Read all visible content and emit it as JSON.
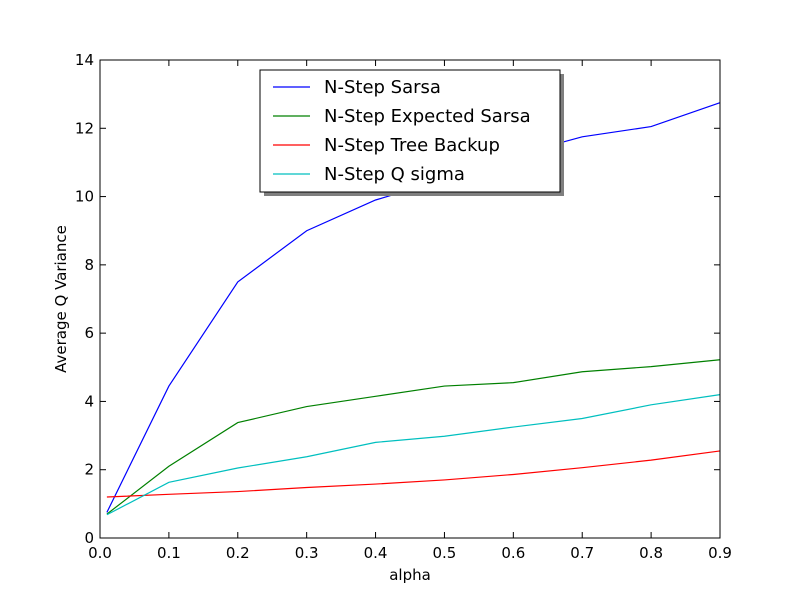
{
  "chart_data": {
    "type": "line",
    "title": "",
    "xlabel": "alpha",
    "ylabel": "Average Q Variance",
    "xlim": [
      0.0,
      0.9
    ],
    "ylim": [
      0,
      14
    ],
    "x_ticks": [
      "0.0",
      "0.1",
      "0.2",
      "0.3",
      "0.4",
      "0.5",
      "0.6",
      "0.7",
      "0.8",
      "0.9"
    ],
    "y_ticks": [
      "0",
      "2",
      "4",
      "6",
      "8",
      "10",
      "12",
      "14"
    ],
    "grid": false,
    "legend_position": "upper-center",
    "x": [
      0.01,
      0.1,
      0.2,
      0.3,
      0.4,
      0.5,
      0.6,
      0.7,
      0.8,
      0.9
    ],
    "series": [
      {
        "name": "N-Step Sarsa",
        "color": "#0000ff",
        "values": [
          0.75,
          4.45,
          7.5,
          9.0,
          9.9,
          10.5,
          11.2,
          11.75,
          12.05,
          12.75
        ]
      },
      {
        "name": "N-Step Expected Sarsa",
        "color": "#008000",
        "values": [
          0.7,
          2.1,
          3.38,
          3.85,
          4.15,
          4.45,
          4.55,
          4.87,
          5.02,
          5.22
        ]
      },
      {
        "name": "N-Step Tree Backup",
        "color": "#ff0000",
        "values": [
          1.2,
          1.28,
          1.36,
          1.48,
          1.58,
          1.7,
          1.86,
          2.06,
          2.28,
          2.55
        ]
      },
      {
        "name": "N-Step Q sigma",
        "color": "#00bfbf",
        "values": [
          0.68,
          1.63,
          2.05,
          2.38,
          2.8,
          2.98,
          3.25,
          3.5,
          3.9,
          4.2
        ]
      }
    ]
  }
}
